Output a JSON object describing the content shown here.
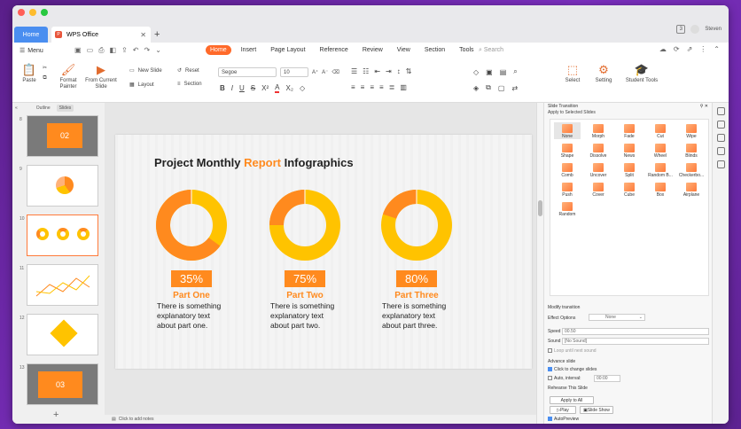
{
  "titlebar": {
    "home_tab": "Home",
    "doc_tab": "WPS Office",
    "doc_icon": "P",
    "close": "✕",
    "new_tab": "+",
    "badge": "3",
    "user": "Steven"
  },
  "menubar": {
    "menu_label": "Menu",
    "tabs": [
      "Home",
      "Insert",
      "Page Layout",
      "Reference",
      "Review",
      "View",
      "Section",
      "Tools"
    ],
    "search_placeholder": "Search"
  },
  "toolbar": {
    "paste": "Paste",
    "format_painter": "Format Painter",
    "from_current_slide": "From Current Slide",
    "new_slide": "New Slide",
    "reset": "Reset",
    "layout": "Layout",
    "section": "Section",
    "font_name": "Segoe",
    "font_size": "10",
    "select": "Select",
    "setting": "Setting",
    "student_tools": "Student Tools"
  },
  "sidebar": {
    "outline": "Outline",
    "slides": "Slides",
    "numbers": [
      "8",
      "9",
      "10",
      "11",
      "12",
      "13"
    ],
    "add": "+"
  },
  "thumbs": {
    "t8": "02",
    "t13": "03"
  },
  "slide": {
    "title_pre": "Project Monthly ",
    "title_hl": "Report",
    "title_post": " Infographics",
    "parts": [
      {
        "pct": "35%",
        "name": "Part One",
        "desc": "There is something explanatory text about part one.",
        "value": 35
      },
      {
        "pct": "75%",
        "name": "Part Two",
        "desc": "There is something explanatory text about part two.",
        "value": 75
      },
      {
        "pct": "80%",
        "name": "Part Three",
        "desc": "There is something explanatory text about part three.",
        "value": 80
      }
    ],
    "colors": {
      "orange": "#ff8a1e",
      "yellow": "#ffc300"
    }
  },
  "notes": {
    "text": "Click to add notes"
  },
  "panel": {
    "title": "Slide Transition",
    "apply_selected": "Apply to Selected Slides",
    "transitions": [
      "None",
      "Morph",
      "Fade",
      "Cut",
      "Wipe",
      "Shape",
      "Dissolve",
      "News",
      "Wheel",
      "Blinds",
      "Comb",
      "Uncover",
      "Split",
      "Random B...",
      "Checkerbo...",
      "Push",
      "Cover",
      "Cube",
      "Box",
      "Airplane",
      "Random"
    ],
    "modify": "Modify transition",
    "effect_options": "Effect Options",
    "effect_value": "None",
    "speed": "Speed",
    "speed_value": "00.50",
    "sound": "Sound",
    "sound_value": "[No Sound]",
    "loop": "Loop until next sound",
    "advance": "Advance slide",
    "on_click": "Click to change slides",
    "auto": "Auto, interval:",
    "auto_value": "00:00",
    "rehearse": "Rehearse This Slide",
    "apply_all": "Apply to All",
    "play": "Play",
    "slideshow": "Slide Show",
    "autopreview": "AutoPreview"
  }
}
